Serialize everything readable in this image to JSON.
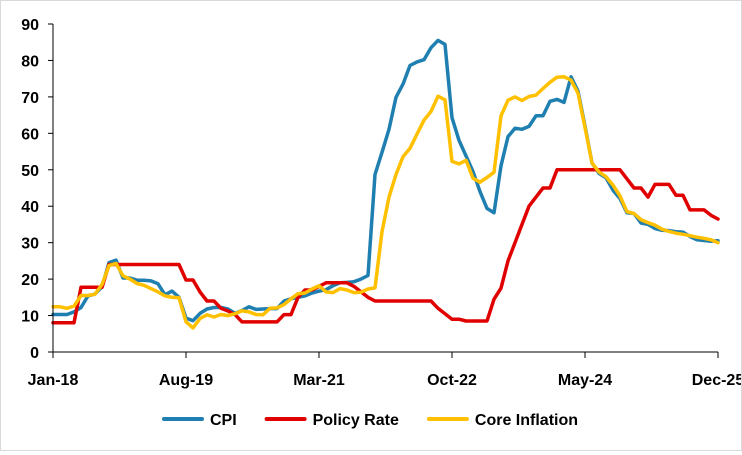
{
  "chart_data": {
    "type": "line",
    "title": "",
    "xlabel": "",
    "ylabel": "",
    "ylim": [
      0,
      90
    ],
    "yticks": [
      0,
      10,
      20,
      30,
      40,
      50,
      60,
      70,
      80,
      90
    ],
    "xticks": [
      {
        "label": "Jan-18",
        "index": 0
      },
      {
        "label": "Aug-19",
        "index": 19
      },
      {
        "label": "Mar-21",
        "index": 38
      },
      {
        "label": "Oct-22",
        "index": 57
      },
      {
        "label": "May-24",
        "index": 76
      },
      {
        "label": "Dec-25",
        "index": 95
      }
    ],
    "x_count": 96,
    "legend_position": "bottom",
    "series": [
      {
        "name": "CPI",
        "color": "#1f7fb0",
        "values": [
          10.3,
          10.3,
          10.3,
          11.0,
          12.2,
          15.4,
          15.9,
          17.9,
          24.5,
          25.2,
          20.3,
          20.3,
          19.7,
          19.7,
          19.5,
          18.7,
          15.7,
          16.7,
          15.0,
          9.3,
          8.6,
          10.6,
          11.8,
          12.2,
          12.2,
          11.8,
          10.6,
          11.4,
          12.4,
          11.7,
          11.8,
          11.9,
          11.9,
          14.0,
          14.6,
          15.0,
          15.4,
          16.2,
          16.7,
          17.1,
          18.2,
          19.0,
          19.1,
          19.3,
          20.0,
          21.0,
          48.7,
          54.8,
          61.1,
          69.9,
          73.5,
          78.6,
          79.6,
          80.2,
          83.5,
          85.5,
          84.4,
          64.3,
          58.1,
          53.8,
          49.5,
          44.0,
          39.4,
          38.2,
          51.1,
          59.1,
          61.4,
          61.1,
          61.9,
          64.8,
          64.8,
          68.8,
          69.3,
          68.5,
          75.5,
          71.6,
          62.0,
          51.9,
          49.0,
          47.8,
          44.4,
          42.1,
          38.2,
          38.0,
          35.4,
          35.0,
          33.9,
          33.4,
          33.3,
          33.0,
          32.9,
          31.7,
          30.8,
          30.6,
          30.4,
          30.5
        ]
      },
      {
        "name": "Policy Rate",
        "color": "#e00000",
        "values": [
          8,
          8,
          8,
          8,
          17.75,
          17.75,
          17.75,
          17.75,
          24,
          24,
          24,
          24,
          24,
          24,
          24,
          24,
          24,
          24,
          24,
          19.75,
          19.75,
          16.5,
          14,
          14,
          12,
          11.25,
          10.25,
          8.25,
          8.25,
          8.25,
          8.25,
          8.25,
          8.25,
          10.25,
          10.25,
          15,
          17,
          17,
          18,
          19,
          19,
          19,
          19,
          18,
          16.5,
          15,
          14,
          14,
          14,
          14,
          14,
          14,
          14,
          14,
          14,
          12,
          10.5,
          9,
          9,
          8.5,
          8.5,
          8.5,
          8.5,
          14.5,
          17.5,
          25,
          30,
          35,
          40,
          42.5,
          45,
          45,
          50,
          50,
          50,
          50,
          50,
          50,
          50,
          50,
          50,
          50,
          47.5,
          45,
          45,
          42.5,
          46,
          46,
          46,
          43,
          43,
          39,
          39,
          39,
          37.5,
          36.5
        ]
      },
      {
        "name": "Core Inflation",
        "color": "#ffc000",
        "values": [
          12.4,
          12.4,
          12.0,
          12.6,
          15.5,
          15.5,
          15.9,
          18.5,
          23.7,
          24.3,
          20.9,
          20.0,
          18.8,
          18.3,
          17.4,
          16.5,
          15.4,
          15.0,
          14.9,
          8.3,
          6.6,
          9.2,
          10.2,
          9.6,
          10.3,
          10.0,
          10.5,
          11.3,
          11.0,
          10.3,
          10.2,
          12.0,
          12.1,
          13.0,
          14.6,
          16.0,
          16.2,
          17.3,
          18.2,
          16.5,
          16.3,
          17.4,
          17.0,
          16.3,
          16.4,
          17.3,
          17.6,
          33.0,
          42.5,
          48.7,
          53.6,
          55.9,
          59.8,
          63.6,
          66.0,
          70.2,
          69.2,
          52.3,
          51.6,
          52.6,
          47.7,
          46.6,
          47.9,
          49.3,
          64.8,
          69.1,
          70.0,
          69.0,
          70.1,
          70.5,
          72.3,
          74.0,
          75.4,
          75.5,
          74.6,
          71.0,
          61.6,
          51.9,
          49.4,
          48.1,
          45.8,
          42.8,
          38.5,
          38.0,
          36.3,
          35.5,
          34.8,
          33.7,
          33.1,
          32.6,
          32.3,
          31.9,
          31.5,
          31.2,
          30.8,
          30.0
        ]
      }
    ]
  }
}
